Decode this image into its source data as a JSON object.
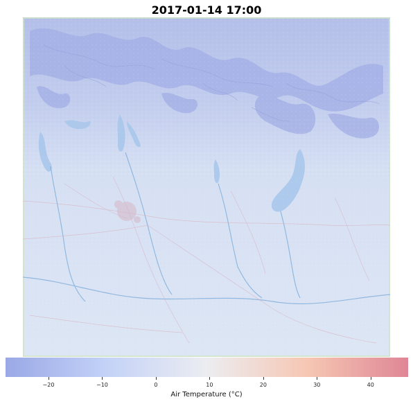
{
  "title": "2017-01-14 17:00",
  "colorbar": {
    "label": "Air Temperature (°C)",
    "min": -28,
    "max": 47,
    "ticks": [
      {
        "value": -20,
        "label": "−20"
      },
      {
        "value": -10,
        "label": "−10"
      },
      {
        "value": 0,
        "label": "0"
      },
      {
        "value": 10,
        "label": "10"
      },
      {
        "value": 20,
        "label": "20"
      },
      {
        "value": 30,
        "label": "30"
      },
      {
        "value": 40,
        "label": "40"
      }
    ],
    "colors": {
      "cold": "#9aa8e6",
      "cool": "#c3d2f7",
      "neutral": "#ecedf1",
      "warm": "#f6c7b3",
      "hot": "#df8696"
    }
  },
  "map": {
    "basemap_colors": {
      "mountains": "#a7b3e6",
      "plain": "#d9e3f3",
      "lakes": "#a9c8ec",
      "rivers": "#78a9d8",
      "roads": "#d9a9b8",
      "forest_edge": "#cfe6c6"
    }
  }
}
